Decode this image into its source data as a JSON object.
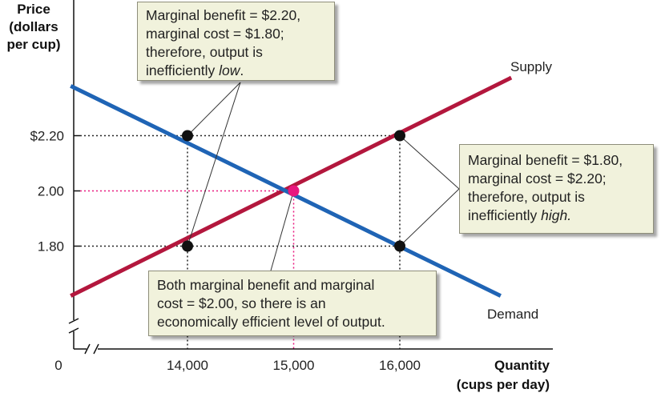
{
  "chart_data": {
    "type": "line",
    "ylabel": [
      "Price",
      "(dollars",
      "per cup)"
    ],
    "xlabel": [
      "Quantity",
      "(cups per day)"
    ],
    "origin_label": "0",
    "x_ticks": [
      {
        "value": 14000,
        "label": "14,000",
        "highlight": false
      },
      {
        "value": 15000,
        "label": "15,000",
        "highlight": true
      },
      {
        "value": 16000,
        "label": "16,000",
        "highlight": false
      }
    ],
    "y_ticks": [
      {
        "value": 2.2,
        "label": "$2.20",
        "highlight": false
      },
      {
        "value": 2.0,
        "label": "2.00",
        "highlight": true
      },
      {
        "value": 1.8,
        "label": "1.80",
        "highlight": false
      }
    ],
    "series": [
      {
        "name": "Supply",
        "color": "#b3173d",
        "x": [
          12900,
          17050
        ],
        "y": [
          1.62,
          2.41
        ]
      },
      {
        "name": "Demand",
        "color": "#1f64b5",
        "x": [
          12900,
          16950
        ],
        "y": [
          2.38,
          1.62
        ]
      }
    ],
    "points": [
      {
        "x": 14000,
        "y": 2.2,
        "color": "#111111"
      },
      {
        "x": 14000,
        "y": 1.8,
        "color": "#111111"
      },
      {
        "x": 16000,
        "y": 2.2,
        "color": "#111111"
      },
      {
        "x": 16000,
        "y": 1.8,
        "color": "#111111"
      },
      {
        "x": 15000,
        "y": 2.0,
        "color": "#e8177e"
      }
    ],
    "highlight_color": "#e8177e",
    "annotations": {
      "low": {
        "lines": [
          "Marginal benefit = $2.20,",
          "marginal cost = $1.80;",
          "therefore, output is"
        ],
        "last_prefix": "inefficiently ",
        "last_emph": "low",
        "last_suffix": "."
      },
      "high": {
        "lines": [
          "Marginal benefit = $1.80,",
          "marginal cost = $2.20;",
          "therefore, output is"
        ],
        "last_prefix": "inefficiently ",
        "last_emph": "high.",
        "last_suffix": ""
      },
      "efficient": {
        "lines": [
          "Both marginal benefit and marginal",
          "cost = $2.00, so there is an",
          "economically efficient level of output."
        ]
      }
    }
  }
}
